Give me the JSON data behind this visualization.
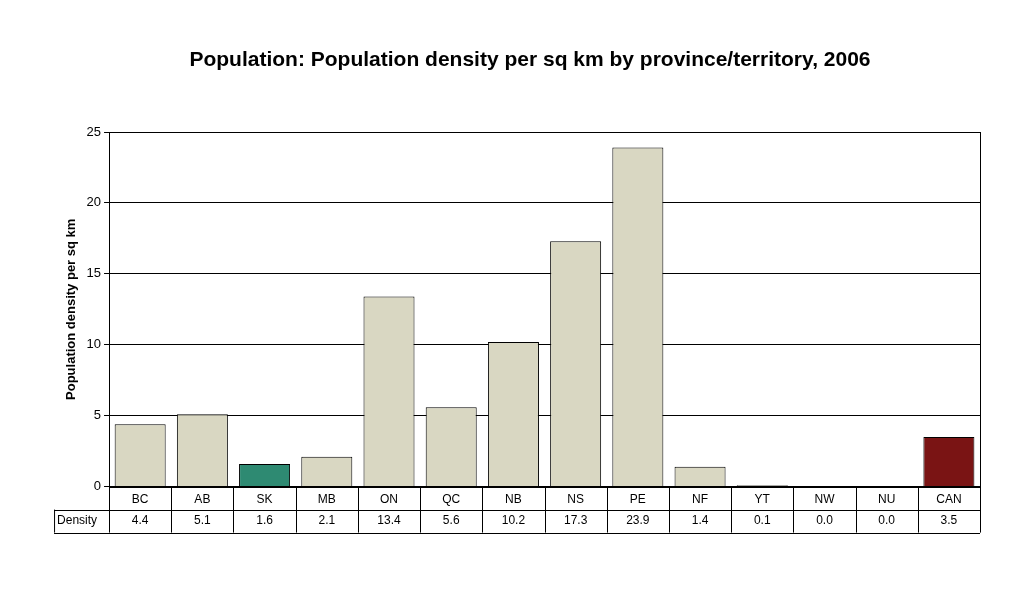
{
  "chart_data": {
    "type": "bar",
    "title": "Population: Population density per sq km by province/territory, 2006",
    "ylabel": "Population density per sq km",
    "categories": [
      "BC",
      "AB",
      "SK",
      "MB",
      "ON",
      "QC",
      "NB",
      "NS",
      "PE",
      "NF",
      "YT",
      "NW",
      "NU",
      "CAN"
    ],
    "series": [
      {
        "name": "Density",
        "colors": [
          "#d9d7c2",
          "#d9d7c2",
          "#2e8a72",
          "#d9d7c2",
          "#d9d7c2",
          "#d9d7c2",
          "#d9d7c2",
          "#d9d7c2",
          "#d9d7c2",
          "#d9d7c2",
          "#d9d7c2",
          "#d9d7c2",
          "#d9d7c2",
          "#7a1414"
        ],
        "values": [
          4.4,
          5.1,
          1.6,
          2.1,
          13.4,
          5.6,
          10.2,
          17.3,
          23.9,
          1.4,
          0.1,
          0,
          0,
          3.5
        ],
        "value_labels": [
          "4.4",
          "5.1",
          "1.6",
          "2.1",
          "13.4",
          "5.6",
          "10.2",
          "17.3",
          "23.9",
          "1.4",
          "0.1",
          "0.0",
          "0.0",
          "3.5"
        ]
      }
    ],
    "ylim": [
      0,
      25
    ],
    "yticks": [
      0,
      5,
      10,
      15,
      20,
      25
    ],
    "grid": "y",
    "legend": false
  }
}
